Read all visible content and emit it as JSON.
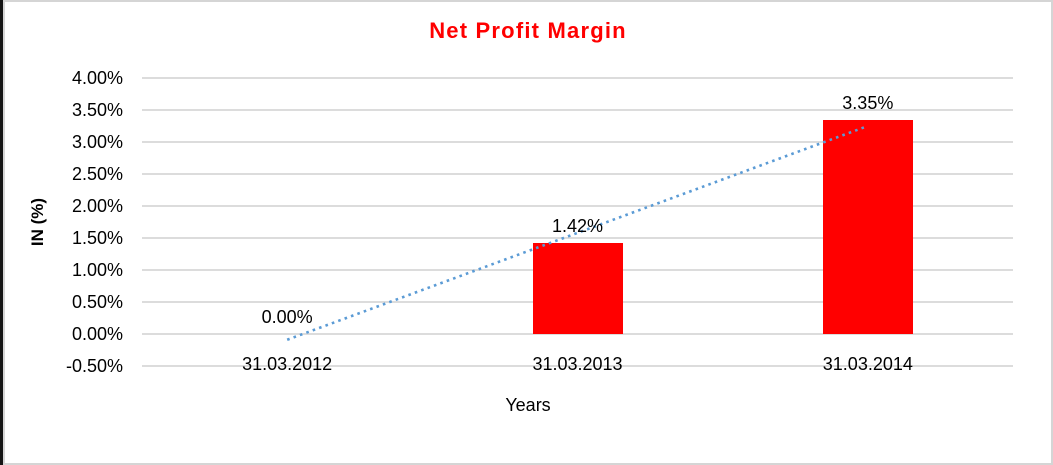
{
  "window": {
    "background": "#ffffff",
    "outer_left_border_color": "#151515",
    "chart_border_color": "#d5d5d5"
  },
  "chart_data": {
    "type": "bar",
    "title": "Net Profit Margin",
    "title_color": "#ff0000",
    "xlabel": "Years",
    "ylabel": "IN (%)",
    "categories": [
      "31.03.2012",
      "31.03.2013",
      "31.03.2014"
    ],
    "series": [
      {
        "name": "Net Profit Margin",
        "color": "#ff0000",
        "values": [
          0.0,
          1.42,
          3.35
        ],
        "data_labels": [
          "0.00%",
          "1.42%",
          "3.35%"
        ]
      }
    ],
    "ylim": [
      -0.5,
      4.0
    ],
    "ytick_values": [
      4.0,
      3.5,
      3.0,
      2.5,
      2.0,
      1.5,
      1.0,
      0.5,
      0.0,
      -0.5
    ],
    "ytick_labels": [
      "4.00%",
      "3.50%",
      "3.00%",
      "2.50%",
      "2.00%",
      "1.50%",
      "1.00%",
      "0.50%",
      "0.00%",
      "-0.50%"
    ],
    "grid": true,
    "gridline_color": "#dcdcdc",
    "legend": "none",
    "trendline": {
      "type": "linear",
      "style": "dotted",
      "color": "#5b9bd5",
      "start_value": -0.09,
      "end_value": 3.25
    }
  }
}
